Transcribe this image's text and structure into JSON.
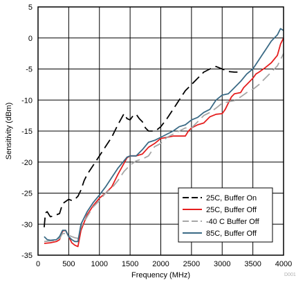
{
  "chart_data": {
    "type": "line",
    "title": "",
    "xlabel": "Frequency (MHz)",
    "ylabel": "Sensitivity (dBm)",
    "xlim": [
      0,
      4000
    ],
    "ylim": [
      -35,
      5
    ],
    "x_ticks": [
      0,
      500,
      1000,
      1500,
      2000,
      2500,
      3000,
      3500,
      4000
    ],
    "y_ticks": [
      5,
      0,
      -5,
      -10,
      -15,
      -20,
      -25,
      -30,
      -35
    ],
    "grid": true,
    "legend_position": "bottom-right",
    "figure_id": "D001",
    "series": [
      {
        "name": "25C, Buffer On",
        "color": "#000000",
        "dash": "dashed",
        "points": [
          [
            100,
            -30.5
          ],
          [
            120,
            -28.2
          ],
          [
            150,
            -28
          ],
          [
            180,
            -28.5
          ],
          [
            200,
            -28.8
          ],
          [
            250,
            -28.7
          ],
          [
            300,
            -28.5
          ],
          [
            350,
            -28.3
          ],
          [
            400,
            -26.7
          ],
          [
            500,
            -26
          ],
          [
            550,
            -26.2
          ],
          [
            600,
            -26
          ],
          [
            650,
            -25.5
          ],
          [
            700,
            -24.5
          ],
          [
            750,
            -23
          ],
          [
            800,
            -22
          ],
          [
            900,
            -20.5
          ],
          [
            1000,
            -19
          ],
          [
            1100,
            -17.5
          ],
          [
            1200,
            -16
          ],
          [
            1300,
            -14
          ],
          [
            1400,
            -12.2
          ],
          [
            1450,
            -13
          ],
          [
            1500,
            -13.2
          ],
          [
            1550,
            -12.5
          ],
          [
            1600,
            -12.3
          ],
          [
            1650,
            -13
          ],
          [
            1700,
            -13.5
          ],
          [
            1750,
            -14.5
          ],
          [
            1800,
            -15
          ],
          [
            1900,
            -15
          ],
          [
            1950,
            -14.7
          ],
          [
            2000,
            -14.3
          ],
          [
            2100,
            -13
          ],
          [
            2200,
            -11.5
          ],
          [
            2300,
            -10
          ],
          [
            2400,
            -8.5
          ],
          [
            2500,
            -7.5
          ],
          [
            2600,
            -6.5
          ],
          [
            2700,
            -5.5
          ],
          [
            2800,
            -5
          ],
          [
            2900,
            -4.6
          ],
          [
            3000,
            -5
          ],
          [
            3100,
            -5.4
          ],
          [
            3200,
            -5.5
          ],
          [
            3250,
            -5.5
          ]
        ]
      },
      {
        "name": "25C, Buffer Off",
        "color": "#e51e1e",
        "dash": "solid",
        "points": [
          [
            100,
            -33.1
          ],
          [
            200,
            -33
          ],
          [
            300,
            -32.8
          ],
          [
            350,
            -32.5
          ],
          [
            400,
            -31.1
          ],
          [
            450,
            -31
          ],
          [
            500,
            -32
          ],
          [
            550,
            -33
          ],
          [
            600,
            -33.4
          ],
          [
            650,
            -33.6
          ],
          [
            700,
            -31
          ],
          [
            800,
            -28.5
          ],
          [
            900,
            -27
          ],
          [
            1000,
            -25.8
          ],
          [
            1100,
            -25
          ],
          [
            1200,
            -24
          ],
          [
            1300,
            -22
          ],
          [
            1400,
            -20.2
          ],
          [
            1450,
            -19.3
          ],
          [
            1500,
            -19
          ],
          [
            1600,
            -19
          ],
          [
            1700,
            -18.7
          ],
          [
            1800,
            -17.6
          ],
          [
            1900,
            -17
          ],
          [
            2000,
            -16.2
          ],
          [
            2100,
            -16
          ],
          [
            2200,
            -15.8
          ],
          [
            2300,
            -15.8
          ],
          [
            2400,
            -15.8
          ],
          [
            2450,
            -15
          ],
          [
            2500,
            -14.5
          ],
          [
            2600,
            -14
          ],
          [
            2700,
            -13.7
          ],
          [
            2800,
            -12.7
          ],
          [
            2900,
            -12.3
          ],
          [
            3000,
            -12.2
          ],
          [
            3050,
            -11.5
          ],
          [
            3100,
            -10.5
          ],
          [
            3150,
            -9.5
          ],
          [
            3200,
            -9
          ],
          [
            3300,
            -8.8
          ],
          [
            3350,
            -8
          ],
          [
            3400,
            -7.5
          ],
          [
            3500,
            -6.5
          ],
          [
            3550,
            -5.8
          ],
          [
            3600,
            -5.5
          ],
          [
            3700,
            -4.8
          ],
          [
            3800,
            -4
          ],
          [
            3900,
            -2.8
          ],
          [
            3950,
            -1
          ],
          [
            4000,
            0
          ]
        ]
      },
      {
        "name": "-40 C Buffer Off",
        "color": "#a6a6a6",
        "dash": "dashed",
        "points": [
          [
            100,
            -32.8
          ],
          [
            200,
            -32.7
          ],
          [
            300,
            -32.6
          ],
          [
            350,
            -32.3
          ],
          [
            400,
            -31.5
          ],
          [
            450,
            -31.5
          ],
          [
            500,
            -31.8
          ],
          [
            550,
            -32
          ],
          [
            600,
            -32.2
          ],
          [
            650,
            -32.3
          ],
          [
            700,
            -30.5
          ],
          [
            800,
            -28.8
          ],
          [
            900,
            -27.2
          ],
          [
            1000,
            -26.2
          ],
          [
            1100,
            -25
          ],
          [
            1200,
            -24.2
          ],
          [
            1300,
            -23
          ],
          [
            1400,
            -21.5
          ],
          [
            1500,
            -20.5
          ],
          [
            1600,
            -19.8
          ],
          [
            1700,
            -19.5
          ],
          [
            1800,
            -19
          ],
          [
            1900,
            -17.5
          ],
          [
            2000,
            -17
          ],
          [
            2100,
            -16
          ],
          [
            2200,
            -15.5
          ],
          [
            2300,
            -15
          ],
          [
            2400,
            -14.5
          ],
          [
            2500,
            -14.5
          ],
          [
            2600,
            -13.5
          ],
          [
            2700,
            -12.5
          ],
          [
            2800,
            -12
          ],
          [
            2900,
            -11.3
          ],
          [
            3000,
            -10.5
          ],
          [
            3100,
            -10.3
          ],
          [
            3200,
            -10.1
          ],
          [
            3300,
            -9.5
          ],
          [
            3400,
            -8.8
          ],
          [
            3500,
            -8.3
          ],
          [
            3600,
            -7.5
          ],
          [
            3700,
            -6.5
          ],
          [
            3800,
            -5.5
          ],
          [
            3900,
            -4.5
          ],
          [
            3950,
            -3.5
          ],
          [
            4000,
            -2.5
          ]
        ]
      },
      {
        "name": "85C, Buffer Off",
        "color": "#3a6a85",
        "dash": "solid",
        "points": [
          [
            100,
            -32
          ],
          [
            150,
            -32.5
          ],
          [
            200,
            -32.6
          ],
          [
            300,
            -32.5
          ],
          [
            350,
            -32
          ],
          [
            400,
            -31
          ],
          [
            450,
            -31
          ],
          [
            500,
            -32
          ],
          [
            550,
            -32.5
          ],
          [
            600,
            -32.8
          ],
          [
            650,
            -32.8
          ],
          [
            700,
            -30
          ],
          [
            800,
            -28
          ],
          [
            900,
            -26.5
          ],
          [
            1000,
            -25.3
          ],
          [
            1100,
            -24
          ],
          [
            1200,
            -22.5
          ],
          [
            1300,
            -21
          ],
          [
            1400,
            -19.8
          ],
          [
            1450,
            -19.2
          ],
          [
            1500,
            -19
          ],
          [
            1600,
            -19
          ],
          [
            1700,
            -18
          ],
          [
            1800,
            -16.8
          ],
          [
            1900,
            -16.5
          ],
          [
            2000,
            -16
          ],
          [
            2100,
            -15.5
          ],
          [
            2200,
            -15
          ],
          [
            2300,
            -14.3
          ],
          [
            2400,
            -14
          ],
          [
            2500,
            -13.2
          ],
          [
            2600,
            -12.8
          ],
          [
            2700,
            -12
          ],
          [
            2800,
            -11.5
          ],
          [
            2900,
            -10
          ],
          [
            3000,
            -9.2
          ],
          [
            3100,
            -9
          ],
          [
            3200,
            -8
          ],
          [
            3300,
            -7
          ],
          [
            3400,
            -5.8
          ],
          [
            3500,
            -5
          ],
          [
            3600,
            -3.5
          ],
          [
            3700,
            -2
          ],
          [
            3800,
            -0.5
          ],
          [
            3900,
            0.5
          ],
          [
            3950,
            1.5
          ],
          [
            4000,
            1.2
          ]
        ]
      }
    ]
  }
}
